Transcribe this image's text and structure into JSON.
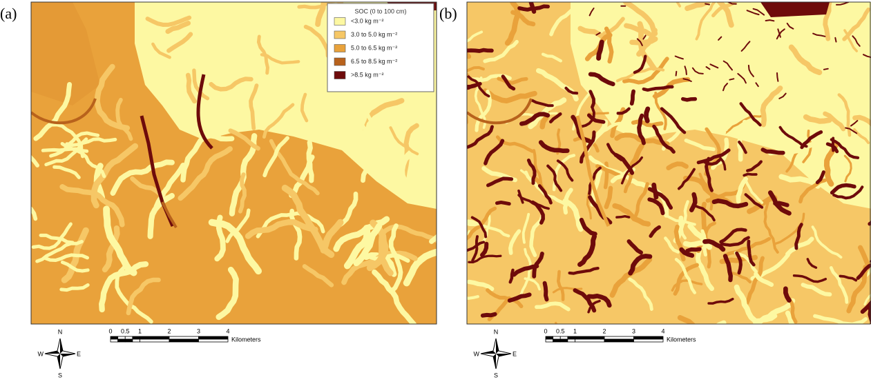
{
  "panels": [
    {
      "label": "(a)",
      "legend": {
        "title": "SOC (0 to 100 cm)",
        "items": [
          {
            "label": "<3.0 kg m⁻²",
            "color": "#fdf8a2"
          },
          {
            "label": "3.0 to 5.0 kg m⁻²",
            "color": "#f6c766"
          },
          {
            "label": "5.0 to 6.5 kg m⁻²",
            "color": "#e9a23b"
          },
          {
            "label": "6.5 to 8.5 kg m⁻²",
            "color": "#b8621c"
          },
          {
            "label": ">8.5 kg m⁻²",
            "color": "#6e0b0b"
          }
        ]
      },
      "compass": {
        "n": "N",
        "s": "S",
        "w": "W",
        "e": "E"
      },
      "scale": {
        "ticks": [
          0,
          0.5,
          1,
          2,
          3,
          4
        ],
        "unit": "Kilometers"
      }
    },
    {
      "label": "(b)",
      "compass": {
        "n": "N",
        "s": "S",
        "w": "W",
        "e": "E"
      },
      "scale": {
        "ticks": [
          0,
          0.5,
          1,
          2,
          3,
          4
        ],
        "unit": "Kilometers"
      }
    }
  ]
}
